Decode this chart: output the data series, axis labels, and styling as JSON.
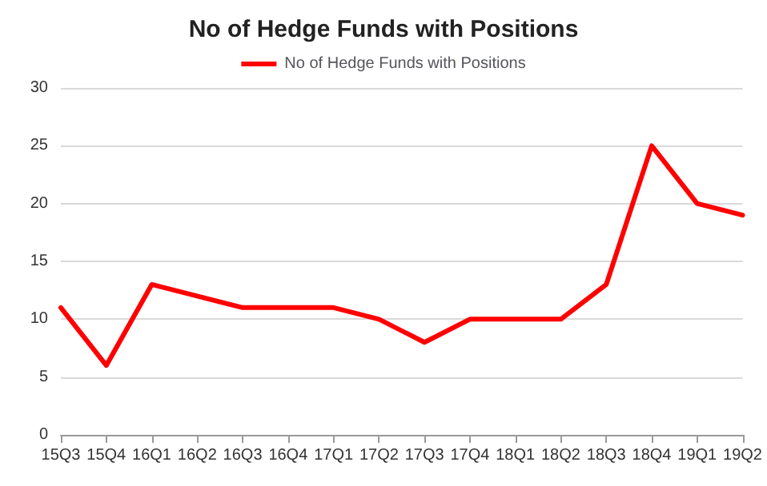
{
  "chart_data": {
    "type": "line",
    "title": "No of Hedge Funds with Positions",
    "categories": [
      "15Q3",
      "15Q4",
      "16Q1",
      "16Q2",
      "16Q3",
      "16Q4",
      "17Q1",
      "17Q2",
      "17Q3",
      "17Q4",
      "18Q1",
      "18Q2",
      "18Q3",
      "18Q4",
      "19Q1",
      "19Q2"
    ],
    "series": [
      {
        "name": "No of Hedge Funds with Positions",
        "color": "#ff0000",
        "values": [
          11,
          6,
          13,
          12,
          11,
          11,
          11,
          10,
          8,
          10,
          10,
          10,
          13,
          25,
          20,
          19
        ]
      }
    ],
    "ylim": [
      0,
      30
    ],
    "yticks": [
      0,
      5,
      10,
      15,
      20,
      25,
      30
    ],
    "grid": "y",
    "legend": "top",
    "marker": "none",
    "line_style": "solid"
  }
}
